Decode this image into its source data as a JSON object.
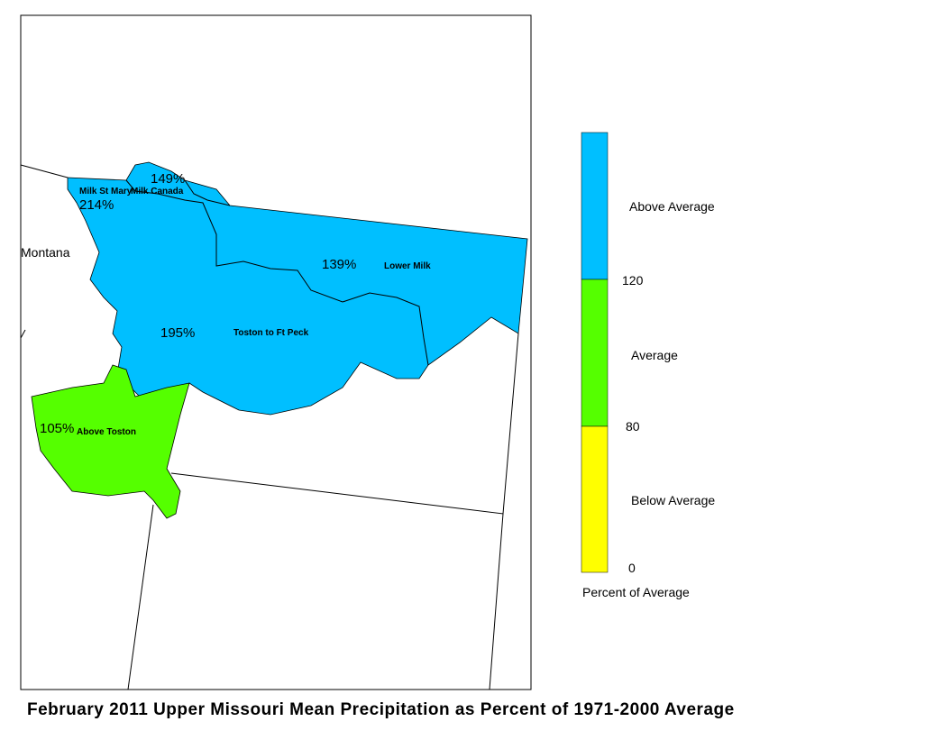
{
  "map": {
    "title": "February 2011 Upper Missouri Mean Precipitation as Percent of 1971-2000 Average",
    "state_label": "Montana",
    "regions": [
      {
        "name": "Milk St Mary",
        "percent": "214%"
      },
      {
        "name": "Milk Canada",
        "percent": "149%"
      },
      {
        "name": "Lower Milk",
        "percent": "139%"
      },
      {
        "name": "Toston to Ft Peck",
        "percent": "195%"
      },
      {
        "name": "Above Toston",
        "percent": "105%"
      }
    ]
  },
  "legend": {
    "items": [
      {
        "label": "Above Average",
        "color": "#00bfff"
      },
      {
        "label": "Average",
        "color": "#55ff00"
      },
      {
        "label": "Below Average",
        "color": "#ffff00"
      }
    ],
    "breaks": [
      "120",
      "80",
      "0"
    ],
    "caption": "Percent of Average"
  }
}
